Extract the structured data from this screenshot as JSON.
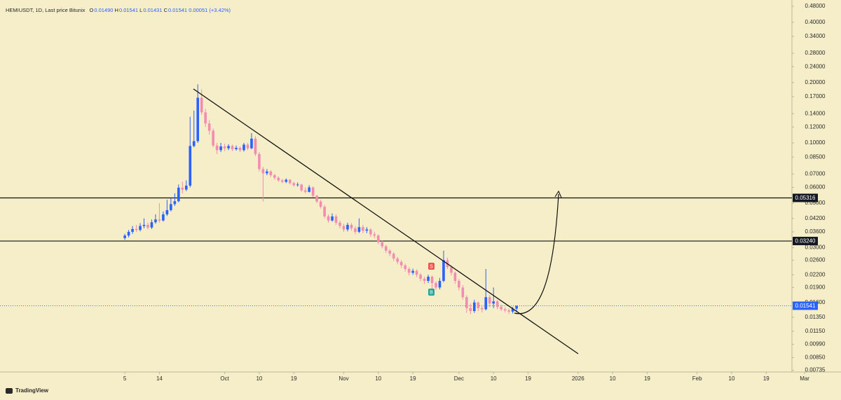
{
  "chart_data": {
    "type": "candlestick",
    "header": {
      "symbol": "HEMIUSDT, 1D, Last price Bitunix",
      "ohlc": [
        {
          "key": "O",
          "value": "0.01490"
        },
        {
          "key": "H",
          "value": "0.01541"
        },
        {
          "key": "L",
          "value": "0.01431"
        },
        {
          "key": "C",
          "value": "0.01541"
        }
      ],
      "change": "0.00051 (+3.42%)"
    },
    "watermark": "TradingView",
    "up_color": "#2962ff",
    "down_color": "#f28cb0",
    "log_scale": true,
    "grid": false,
    "ylim": [
      0.0072,
      0.516
    ],
    "yticks": [
      {
        "value": 0.48,
        "label": "0.48000"
      },
      {
        "value": 0.4,
        "label": "0.40000"
      },
      {
        "value": 0.34,
        "label": "0.34000"
      },
      {
        "value": 0.28,
        "label": "0.28000"
      },
      {
        "value": 0.24,
        "label": "0.24000"
      },
      {
        "value": 0.2,
        "label": "0.20000"
      },
      {
        "value": 0.17,
        "label": "0.17000"
      },
      {
        "value": 0.14,
        "label": "0.14000"
      },
      {
        "value": 0.12,
        "label": "0.12000"
      },
      {
        "value": 0.1,
        "label": "0.10000"
      },
      {
        "value": 0.085,
        "label": "0.08500"
      },
      {
        "value": 0.07,
        "label": "0.07000"
      },
      {
        "value": 0.06,
        "label": "0.06000"
      },
      {
        "value": 0.05,
        "label": "0.05000"
      },
      {
        "value": 0.042,
        "label": "0.04200"
      },
      {
        "value": 0.036,
        "label": "0.03600"
      },
      {
        "value": 0.03,
        "label": "0.03000"
      },
      {
        "value": 0.026,
        "label": "0.02600"
      },
      {
        "value": 0.022,
        "label": "0.02200"
      },
      {
        "value": 0.019,
        "label": "0.01900"
      },
      {
        "value": 0.016,
        "label": "0.01600"
      },
      {
        "value": 0.0135,
        "label": "0.01350"
      },
      {
        "value": 0.0115,
        "label": "0.01150"
      },
      {
        "value": 0.0099,
        "label": "0.00990"
      },
      {
        "value": 0.0085,
        "label": "0.00850"
      },
      {
        "value": 0.00735,
        "label": "0.00735"
      }
    ],
    "xlim": [
      -32.5,
      173.7
    ],
    "xticks": [
      {
        "value": 0,
        "label": "5"
      },
      {
        "value": 9,
        "label": "14"
      },
      {
        "value": 26,
        "label": "Oct"
      },
      {
        "value": 35,
        "label": "10"
      },
      {
        "value": 44,
        "label": "19"
      },
      {
        "value": 57,
        "label": "Nov"
      },
      {
        "value": 66,
        "label": "10"
      },
      {
        "value": 75,
        "label": "19"
      },
      {
        "value": 87,
        "label": "Dec"
      },
      {
        "value": 96,
        "label": "10"
      },
      {
        "value": 105,
        "label": "19"
      },
      {
        "value": 118,
        "label": "2026"
      },
      {
        "value": 127,
        "label": "10"
      },
      {
        "value": 136,
        "label": "19"
      },
      {
        "value": 149,
        "label": "Feb"
      },
      {
        "value": 158,
        "label": "10"
      },
      {
        "value": 167,
        "label": "19"
      },
      {
        "value": 177,
        "label": "Mar"
      }
    ],
    "levels": [
      0.05316,
      {
        "value": 0.0324,
        "label": "0.03240"
      }
    ],
    "last_price": 0.01541,
    "markers": [
      "S",
      "B"
    ],
    "x": [
      0,
      1,
      2,
      3,
      4,
      5,
      6,
      7,
      8,
      9,
      10,
      11,
      12,
      13,
      14,
      15,
      16,
      17,
      18,
      19,
      20,
      21,
      22,
      23,
      24,
      25,
      26,
      27,
      28,
      29,
      30,
      31,
      32,
      33,
      34,
      35,
      36,
      37,
      38,
      39,
      40,
      41,
      42,
      43,
      44,
      45,
      46,
      47,
      48,
      49,
      50,
      51,
      52,
      53,
      54,
      55,
      56,
      57,
      58,
      59,
      60,
      61,
      62,
      63,
      64,
      65,
      66,
      67,
      68,
      69,
      70,
      71,
      72,
      73,
      74,
      75,
      76,
      77,
      78,
      79,
      80,
      81,
      82,
      83,
      84,
      85,
      86,
      87,
      88,
      89,
      90,
      91,
      92,
      93,
      94,
      95,
      96,
      97,
      98,
      99,
      100,
      101,
      102
    ],
    "open": [
      0.0335,
      0.0345,
      0.036,
      0.0372,
      0.0368,
      0.0385,
      0.039,
      0.0378,
      0.0402,
      0.0415,
      0.041,
      0.044,
      0.0462,
      0.0495,
      0.0512,
      0.0598,
      0.0585,
      0.0612,
      0.0965,
      0.102,
      0.168,
      0.142,
      0.125,
      0.115,
      0.097,
      0.092,
      0.096,
      0.094,
      0.0965,
      0.093,
      0.0945,
      0.092,
      0.098,
      0.094,
      0.105,
      0.088,
      0.074,
      0.0705,
      0.072,
      0.069,
      0.067,
      0.065,
      0.064,
      0.0655,
      0.063,
      0.0615,
      0.062,
      0.058,
      0.057,
      0.06,
      0.0545,
      0.051,
      0.048,
      0.043,
      0.041,
      0.043,
      0.04,
      0.0385,
      0.037,
      0.039,
      0.0375,
      0.036,
      0.038,
      0.0365,
      0.037,
      0.035,
      0.0345,
      0.032,
      0.0305,
      0.029,
      0.028,
      0.0265,
      0.0255,
      0.0245,
      0.0235,
      0.0225,
      0.023,
      0.022,
      0.021,
      0.0205,
      0.0215,
      0.02,
      0.019,
      0.0205,
      0.026,
      0.024,
      0.0225,
      0.0205,
      0.019,
      0.017,
      0.015,
      0.0145,
      0.016,
      0.015,
      0.0148,
      0.017,
      0.0158,
      0.0162,
      0.0152,
      0.0148,
      0.0146,
      0.0144,
      0.0149
    ],
    "high": [
      0.0352,
      0.0368,
      0.0385,
      0.039,
      0.0398,
      0.042,
      0.04,
      0.0415,
      0.044,
      0.05,
      0.0455,
      0.052,
      0.053,
      0.056,
      0.062,
      0.064,
      0.065,
      0.135,
      0.145,
      0.196,
      0.185,
      0.148,
      0.13,
      0.118,
      0.1,
      0.1,
      0.099,
      0.0985,
      0.098,
      0.097,
      0.096,
      0.1,
      0.1,
      0.112,
      0.108,
      0.09,
      0.076,
      0.074,
      0.073,
      0.07,
      0.068,
      0.066,
      0.0665,
      0.066,
      0.064,
      0.0635,
      0.0625,
      0.06,
      0.0615,
      0.0605,
      0.055,
      0.052,
      0.049,
      0.044,
      0.0445,
      0.044,
      0.041,
      0.0395,
      0.04,
      0.0398,
      0.0385,
      0.042,
      0.039,
      0.038,
      0.0375,
      0.036,
      0.035,
      0.0325,
      0.031,
      0.0295,
      0.0285,
      0.027,
      0.026,
      0.025,
      0.024,
      0.0236,
      0.0234,
      0.0224,
      0.0215,
      0.022,
      0.0218,
      0.0204,
      0.0212,
      0.029,
      0.0268,
      0.0245,
      0.0228,
      0.021,
      0.0195,
      0.0174,
      0.0158,
      0.0165,
      0.0162,
      0.0153,
      0.0235,
      0.0174,
      0.019,
      0.0165,
      0.0156,
      0.0151,
      0.0149,
      0.0152,
      0.01541
    ],
    "low": [
      0.0328,
      0.0338,
      0.0352,
      0.036,
      0.0362,
      0.0375,
      0.037,
      0.0372,
      0.0395,
      0.04,
      0.0405,
      0.0432,
      0.0455,
      0.0485,
      0.0505,
      0.056,
      0.0575,
      0.06,
      0.095,
      0.1,
      0.138,
      0.12,
      0.11,
      0.095,
      0.088,
      0.09,
      0.091,
      0.092,
      0.091,
      0.0915,
      0.09,
      0.0905,
      0.092,
      0.093,
      0.086,
      0.072,
      0.051,
      0.069,
      0.0675,
      0.0655,
      0.064,
      0.063,
      0.063,
      0.062,
      0.0605,
      0.0605,
      0.057,
      0.056,
      0.0565,
      0.0535,
      0.05,
      0.047,
      0.042,
      0.04,
      0.0405,
      0.039,
      0.0375,
      0.036,
      0.0362,
      0.0365,
      0.035,
      0.0355,
      0.0355,
      0.0355,
      0.034,
      0.0335,
      0.0312,
      0.0298,
      0.0282,
      0.0272,
      0.0258,
      0.0248,
      0.0238,
      0.0228,
      0.0218,
      0.022,
      0.0214,
      0.0204,
      0.0198,
      0.02,
      0.0175,
      0.0185,
      0.0186,
      0.0202,
      0.0235,
      0.0218,
      0.0198,
      0.0184,
      0.0165,
      0.0142,
      0.014,
      0.0142,
      0.0145,
      0.0143,
      0.0146,
      0.0152,
      0.015,
      0.0148,
      0.0145,
      0.0143,
      0.014,
      0.0141,
      0.01431
    ],
    "close": [
      0.0345,
      0.036,
      0.0372,
      0.0368,
      0.0385,
      0.039,
      0.0378,
      0.0402,
      0.0415,
      0.041,
      0.044,
      0.0462,
      0.0495,
      0.0512,
      0.0598,
      0.0585,
      0.0612,
      0.0965,
      0.102,
      0.168,
      0.142,
      0.125,
      0.115,
      0.097,
      0.092,
      0.096,
      0.094,
      0.0965,
      0.093,
      0.0945,
      0.092,
      0.098,
      0.094,
      0.105,
      0.088,
      0.074,
      0.0705,
      0.072,
      0.069,
      0.067,
      0.065,
      0.064,
      0.0655,
      0.063,
      0.0615,
      0.062,
      0.058,
      0.057,
      0.06,
      0.0545,
      0.051,
      0.048,
      0.043,
      0.041,
      0.043,
      0.04,
      0.0385,
      0.037,
      0.039,
      0.0375,
      0.036,
      0.038,
      0.0365,
      0.037,
      0.035,
      0.0345,
      0.032,
      0.0305,
      0.029,
      0.028,
      0.0265,
      0.0255,
      0.0245,
      0.0235,
      0.0225,
      0.023,
      0.022,
      0.021,
      0.0205,
      0.0215,
      0.02,
      0.019,
      0.0205,
      0.026,
      0.024,
      0.0225,
      0.0205,
      0.019,
      0.017,
      0.015,
      0.0145,
      0.016,
      0.015,
      0.0148,
      0.017,
      0.0158,
      0.0162,
      0.0152,
      0.0148,
      0.0146,
      0.0144,
      0.0149,
      0.01541
    ]
  }
}
